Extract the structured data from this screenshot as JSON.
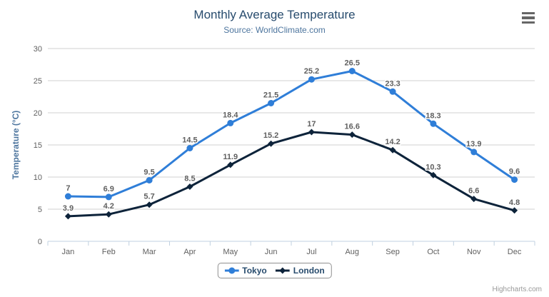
{
  "header": {
    "title": "Monthly Average Temperature",
    "subtitle": "Source: WorldClimate.com"
  },
  "chart_data": {
    "type": "line",
    "title": "Monthly Average Temperature",
    "subtitle": "Source: WorldClimate.com",
    "categories": [
      "Jan",
      "Feb",
      "Mar",
      "Apr",
      "May",
      "Jun",
      "Jul",
      "Aug",
      "Sep",
      "Oct",
      "Nov",
      "Dec"
    ],
    "series": [
      {
        "name": "Tokyo",
        "color": "#2f7ed8",
        "marker": "circle",
        "values": [
          7,
          6.9,
          9.5,
          14.5,
          18.4,
          21.5,
          25.2,
          26.5,
          23.3,
          18.3,
          13.9,
          9.6
        ]
      },
      {
        "name": "London",
        "color": "#0d233a",
        "marker": "diamond",
        "values": [
          3.9,
          4.2,
          5.7,
          8.5,
          11.9,
          15.2,
          17,
          16.6,
          14.2,
          10.3,
          6.6,
          4.8
        ]
      }
    ],
    "xlabel": "",
    "ylabel": "Temperature (°C)",
    "ylim": [
      0,
      30
    ],
    "ytick_interval": 5,
    "yticks": [
      0,
      5,
      10,
      15,
      20,
      25,
      30
    ],
    "grid": true,
    "data_labels": true,
    "legend_position": "bottom"
  },
  "icons": {
    "menu": "hamburger-menu-icon"
  },
  "credits": {
    "label": "Highcharts.com"
  },
  "colors": {
    "title": "#274b6d",
    "subtitle": "#4d759e",
    "axis_title": "#4d759e",
    "axis_labels": "#606060",
    "data_labels": "#606060",
    "gridline": "#d0d0d0",
    "axis_line": "#c0d0e0",
    "legend_border": "#909090",
    "legend_text": "#274b6d",
    "credits": "#999999",
    "menu_icon": "#666666",
    "background": "#ffffff"
  }
}
